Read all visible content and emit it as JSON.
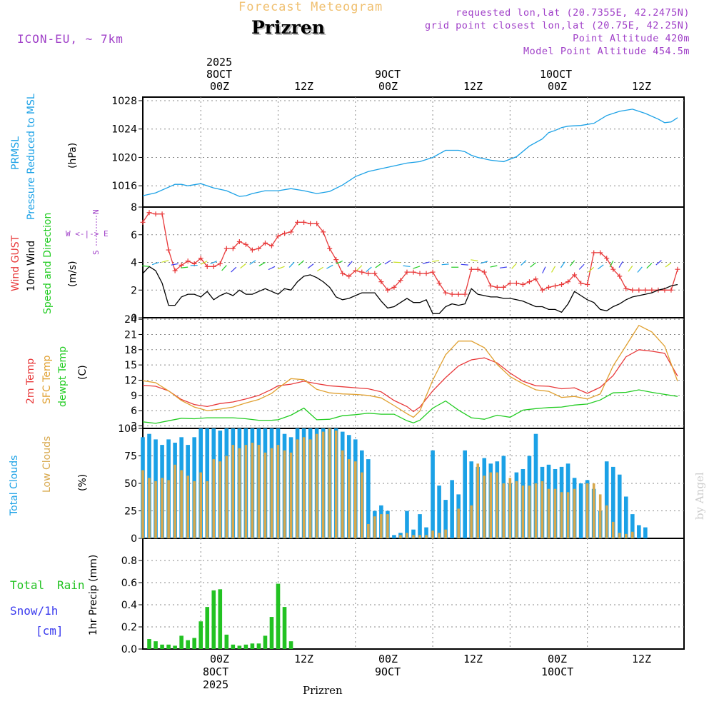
{
  "header": {
    "brand": "Forecast Meteogram",
    "city": "Prizren",
    "model": "ICON-EU, ~ 7km",
    "requested": "requested lon,lat (20.7355E, 42.2475N)",
    "gridpoint": "grid point closest lon,lat (20.75E, 42.25N)",
    "point_alt": "Point Altitude 420m",
    "model_alt": "Model Point Altitude 454.5m"
  },
  "top_axis": {
    "year": "2025",
    "days": [
      "8OCT",
      "9OCT",
      "10OCT"
    ],
    "ticks": [
      "00Z",
      "12Z",
      "00Z",
      "12Z",
      "00Z",
      "12Z"
    ]
  },
  "bottom_axis": {
    "ticks": [
      "00Z",
      "12Z",
      "00Z",
      "12Z",
      "00Z",
      "12Z"
    ],
    "days": [
      "8OCT",
      "9OCT",
      "10OCT"
    ],
    "year": "2025",
    "caption": "Prizren"
  },
  "watermark": "by Angel",
  "colors": {
    "pressure": "#1ba1e6",
    "gust": "#e8393a",
    "wind": "#000000",
    "dir": "#22cc22",
    "temp": "#e8393a",
    "sfc": "#e0a030",
    "dewpt": "#22cc22",
    "totalcloud": "#1ba1e6",
    "lowcloud": "#d8a84c",
    "rain": "#22c222",
    "snow": "#3a3aee",
    "purple": "#a040c8",
    "brandc": "#f0c070"
  },
  "panels": {
    "pressure": {
      "label1": "PRMSL",
      "label2": "Pressure Reduced to MSL",
      "unit": "(hPa)"
    },
    "wind": {
      "gust": "Wind GUST",
      "wind": "10m Wind",
      "dir": "Speed and Direction",
      "unit": "(m/s)",
      "compass_n": "N",
      "compass_s": "S",
      "compass_we": "W <-|-> E"
    },
    "temp": {
      "t2m": "2m Temp",
      "sfc": "SFC Temp",
      "dew": "dewpt Temp",
      "unit": "(C)"
    },
    "clouds": {
      "total": "Total Clouds",
      "low": "Low Clouds",
      "unit": "(%)"
    },
    "precip": {
      "total": "Total",
      "rain": "Rain",
      "snow": "Snow/1h",
      "cm": "[cm]",
      "unit": "1hr Precip (mm)"
    }
  },
  "chart_data": [
    {
      "type": "line",
      "name": "pressure",
      "ylabel": "hPa",
      "ylim": [
        1013,
        1028.5
      ],
      "yticks": [
        1016,
        1020,
        1024,
        1028
      ],
      "x_hours_from_0Z_8OCT": [
        -9,
        -7,
        -5,
        -4,
        -3,
        -2,
        0,
        2,
        4,
        6,
        7,
        8,
        10,
        12,
        14,
        16,
        18,
        20,
        22,
        24,
        26,
        28,
        30,
        32,
        34,
        36,
        38,
        40,
        41,
        42,
        43,
        45,
        47,
        49,
        51,
        53,
        54,
        55,
        56,
        57,
        59,
        61,
        63,
        65,
        67,
        69,
        71,
        72,
        73,
        74
      ],
      "series": [
        {
          "name": "PRMSL",
          "values": [
            1014.6,
            1015.0,
            1015.8,
            1016.2,
            1016.2,
            1016.0,
            1016.3,
            1015.7,
            1015.3,
            1014.5,
            1014.6,
            1014.9,
            1015.3,
            1015.3,
            1015.6,
            1015.3,
            1014.9,
            1015.2,
            1016.1,
            1017.3,
            1018.0,
            1018.4,
            1018.8,
            1019.2,
            1019.4,
            1020.0,
            1021.0,
            1021.0,
            1020.8,
            1020.3,
            1020.0,
            1019.6,
            1019.4,
            1020.1,
            1021.6,
            1022.6,
            1023.5,
            1023.8,
            1024.2,
            1024.4,
            1024.5,
            1024.8,
            1025.9,
            1026.5,
            1026.8,
            1026.2,
            1025.4,
            1024.9,
            1025.0,
            1025.6
          ]
        }
      ]
    },
    {
      "type": "line",
      "name": "wind",
      "ylabel": "m/s",
      "ylim": [
        0,
        8
      ],
      "yticks": [
        0,
        2,
        4,
        6,
        8
      ],
      "x_hours_from_0Z_8OCT": [
        -9,
        -8,
        -7,
        -6,
        -5,
        -4,
        -3,
        -2,
        -1,
        0,
        1,
        2,
        3,
        4,
        5,
        6,
        7,
        8,
        9,
        10,
        11,
        12,
        13,
        14,
        15,
        16,
        17,
        18,
        19,
        20,
        21,
        22,
        23,
        24,
        25,
        26,
        27,
        28,
        29,
        30,
        31,
        32,
        33,
        34,
        35,
        36,
        37,
        38,
        39,
        40,
        41,
        42,
        43,
        44,
        45,
        46,
        47,
        48,
        49,
        50,
        51,
        52,
        53,
        54,
        55,
        56,
        57,
        58,
        59,
        60,
        61,
        62,
        63,
        64,
        65,
        66,
        67,
        68,
        69,
        70,
        71,
        72,
        73,
        74
      ],
      "series": [
        {
          "name": "Wind GUST",
          "values": [
            6.9,
            7.6,
            7.5,
            7.5,
            4.9,
            3.4,
            3.8,
            4.1,
            3.9,
            4.3,
            3.7,
            3.7,
            3.9,
            5.0,
            5.0,
            5.5,
            5.3,
            4.9,
            5.0,
            5.4,
            5.2,
            5.9,
            6.1,
            6.2,
            6.9,
            6.9,
            6.8,
            6.8,
            6.2,
            5.0,
            4.2,
            3.2,
            3.0,
            3.4,
            3.3,
            3.2,
            3.2,
            2.6,
            2.0,
            2.2,
            2.7,
            3.3,
            3.3,
            3.2,
            3.2,
            3.3,
            2.5,
            1.8,
            1.7,
            1.7,
            1.7,
            3.5,
            3.5,
            3.3,
            2.3,
            2.2,
            2.2,
            2.5,
            2.5,
            2.4,
            2.6,
            2.8,
            2.0,
            2.2,
            2.3,
            2.4,
            2.6,
            3.1,
            2.5,
            2.4,
            4.7,
            4.7,
            4.3,
            3.5,
            3.0,
            2.1,
            2.0,
            2.0,
            2.0,
            2.0,
            2.0,
            2.0,
            2.0,
            3.5
          ]
        },
        {
          "name": "10m Wind",
          "values": [
            3.2,
            3.7,
            3.4,
            2.5,
            0.9,
            0.9,
            1.5,
            1.7,
            1.7,
            1.5,
            1.9,
            1.3,
            1.6,
            1.8,
            1.6,
            2.0,
            1.7,
            1.7,
            1.9,
            2.1,
            1.9,
            1.7,
            2.1,
            2.0,
            2.6,
            3.0,
            3.1,
            2.9,
            2.6,
            2.2,
            1.5,
            1.3,
            1.4,
            1.6,
            1.8,
            1.8,
            1.8,
            1.2,
            0.7,
            0.8,
            1.1,
            1.4,
            1.1,
            1.1,
            1.3,
            0.3,
            0.3,
            0.8,
            1.0,
            0.9,
            1.0,
            2.1,
            1.7,
            1.6,
            1.5,
            1.5,
            1.4,
            1.4,
            1.3,
            1.2,
            1.0,
            0.8,
            0.8,
            0.6,
            0.6,
            0.4,
            1.0,
            1.9,
            1.6,
            1.3,
            1.1,
            0.6,
            0.5,
            0.8,
            1.0,
            1.3,
            1.5,
            1.6,
            1.7,
            1.8,
            2.0,
            2.1,
            2.3,
            2.4
          ]
        }
      ]
    },
    {
      "type": "line",
      "name": "temperature",
      "ylabel": "C",
      "ylim": [
        2.5,
        24.3
      ],
      "yticks": [
        3,
        6,
        9,
        12,
        15,
        18,
        21,
        24
      ],
      "x_hours_from_0Z_8OCT": [
        -9,
        -7,
        -5,
        -3,
        -1,
        1,
        3,
        5,
        7,
        9,
        11,
        12,
        14,
        16,
        18,
        20,
        22,
        24,
        26,
        28,
        30,
        32,
        33,
        34,
        36,
        38,
        40,
        42,
        44,
        46,
        48,
        50,
        52,
        54,
        56,
        58,
        60,
        62,
        64,
        66,
        68,
        70,
        72,
        74
      ],
      "series": [
        {
          "name": "2m Temp",
          "values": [
            11.0,
            10.8,
            9.9,
            8.2,
            7.2,
            6.8,
            7.4,
            7.7,
            8.3,
            9.0,
            10.2,
            10.9,
            11.2,
            11.8,
            11.3,
            10.9,
            10.7,
            10.5,
            10.3,
            9.7,
            8.0,
            6.8,
            5.8,
            6.7,
            9.9,
            12.5,
            14.8,
            16.0,
            16.4,
            15.4,
            13.4,
            11.8,
            10.9,
            10.8,
            10.3,
            10.5,
            9.4,
            10.6,
            12.9,
            16.6,
            18.0,
            17.7,
            17.3,
            12.8
          ]
        },
        {
          "name": "SFC Temp",
          "values": [
            11.9,
            11.5,
            9.9,
            8.0,
            6.7,
            6.0,
            6.3,
            6.7,
            7.5,
            8.2,
            9.4,
            10.4,
            12.3,
            12.1,
            10.2,
            9.5,
            9.3,
            9.2,
            9.0,
            8.5,
            7.0,
            5.4,
            4.7,
            5.9,
            12.0,
            17.0,
            19.7,
            19.7,
            18.4,
            15.1,
            12.7,
            11.3,
            10.1,
            9.8,
            8.6,
            8.8,
            8.3,
            9.3,
            14.8,
            18.8,
            22.8,
            21.5,
            18.7,
            11.8
          ]
        },
        {
          "name": "dewpt Temp",
          "values": [
            3.8,
            3.5,
            4.0,
            4.5,
            4.4,
            4.6,
            4.6,
            4.6,
            4.4,
            4.1,
            4.1,
            4.2,
            5.1,
            6.5,
            4.2,
            4.3,
            5.0,
            5.2,
            5.5,
            5.3,
            5.3,
            4.0,
            3.6,
            4.1,
            6.5,
            7.9,
            6.1,
            4.6,
            4.3,
            5.1,
            4.7,
            6.1,
            6.4,
            6.6,
            6.7,
            7.1,
            7.3,
            8.1,
            9.5,
            9.6,
            10.1,
            9.6,
            9.2,
            8.8
          ]
        }
      ]
    },
    {
      "type": "bar",
      "name": "clouds",
      "ylabel": "%",
      "ylim": [
        0,
        100
      ],
      "yticks": [
        0,
        25,
        50,
        75,
        100
      ],
      "x_hours_from_0Z_8OCT": [
        -9,
        -8,
        -7,
        -6,
        -5,
        -4,
        -3,
        -2,
        -1,
        0,
        1,
        2,
        3,
        4,
        5,
        6,
        7,
        8,
        9,
        10,
        11,
        12,
        13,
        14,
        15,
        16,
        17,
        18,
        19,
        20,
        21,
        22,
        23,
        24,
        25,
        26,
        27,
        28,
        29,
        30,
        31,
        32,
        33,
        34,
        35,
        36,
        37,
        38,
        39,
        40,
        41,
        42,
        43,
        44,
        45,
        46,
        47,
        48,
        49,
        50,
        51,
        52,
        53,
        54,
        55,
        56,
        57,
        58,
        59,
        60,
        61,
        62,
        63,
        64,
        65,
        66,
        67,
        68,
        69,
        70,
        71,
        72,
        73,
        74
      ],
      "series": [
        {
          "name": "Total Clouds",
          "values": [
            92,
            95,
            90,
            85,
            90,
            87,
            92,
            85,
            92,
            100,
            100,
            100,
            98,
            100,
            100,
            100,
            100,
            100,
            100,
            100,
            100,
            100,
            95,
            92,
            100,
            100,
            100,
            100,
            100,
            100,
            100,
            97,
            94,
            90,
            80,
            72,
            25,
            30,
            25,
            3,
            5,
            25,
            8,
            22,
            10,
            80,
            48,
            35,
            53,
            40,
            80,
            70,
            65,
            73,
            68,
            70,
            75,
            50,
            60,
            63,
            75,
            95,
            65,
            67,
            63,
            65,
            68,
            55,
            50,
            53,
            45,
            25,
            70,
            65,
            58,
            38,
            22,
            12,
            10,
            0,
            0,
            0,
            0,
            0
          ]
        },
        {
          "name": "Low Clouds",
          "values": [
            62,
            55,
            52,
            55,
            53,
            67,
            62,
            57,
            52,
            60,
            52,
            72,
            70,
            75,
            85,
            82,
            85,
            87,
            85,
            78,
            82,
            85,
            80,
            78,
            90,
            92,
            90,
            95,
            97,
            100,
            98,
            80,
            72,
            70,
            60,
            13,
            20,
            22,
            22,
            0,
            3,
            5,
            3,
            3,
            3,
            7,
            5,
            8,
            0,
            27,
            0,
            30,
            68,
            57,
            60,
            60,
            50,
            55,
            52,
            48,
            48,
            50,
            52,
            45,
            45,
            42,
            42,
            45,
            0,
            50,
            50,
            40,
            30,
            15,
            5,
            4,
            6,
            0,
            0,
            0,
            0,
            0,
            0,
            0
          ]
        }
      ]
    },
    {
      "type": "bar",
      "name": "precipitation",
      "ylabel": "1hr Precip (mm)",
      "ylim": [
        0,
        1.0
      ],
      "yticks": [
        0,
        0.2,
        0.4,
        0.6,
        0.8
      ],
      "x_hours_from_0Z_8OCT": [
        -8,
        -7,
        -6,
        -5,
        -4,
        -3,
        -2,
        -1,
        0,
        1,
        2,
        3,
        4,
        5,
        6,
        7,
        8,
        9,
        10,
        11,
        12,
        13,
        14
      ],
      "series": [
        {
          "name": "Total Rain",
          "values": [
            0.09,
            0.07,
            0.04,
            0.04,
            0.03,
            0.12,
            0.08,
            0.1,
            0.25,
            0.38,
            0.53,
            0.54,
            0.13,
            0.04,
            0.03,
            0.04,
            0.05,
            0.05,
            0.12,
            0.29,
            0.59,
            0.38,
            0.07
          ]
        }
      ]
    }
  ]
}
